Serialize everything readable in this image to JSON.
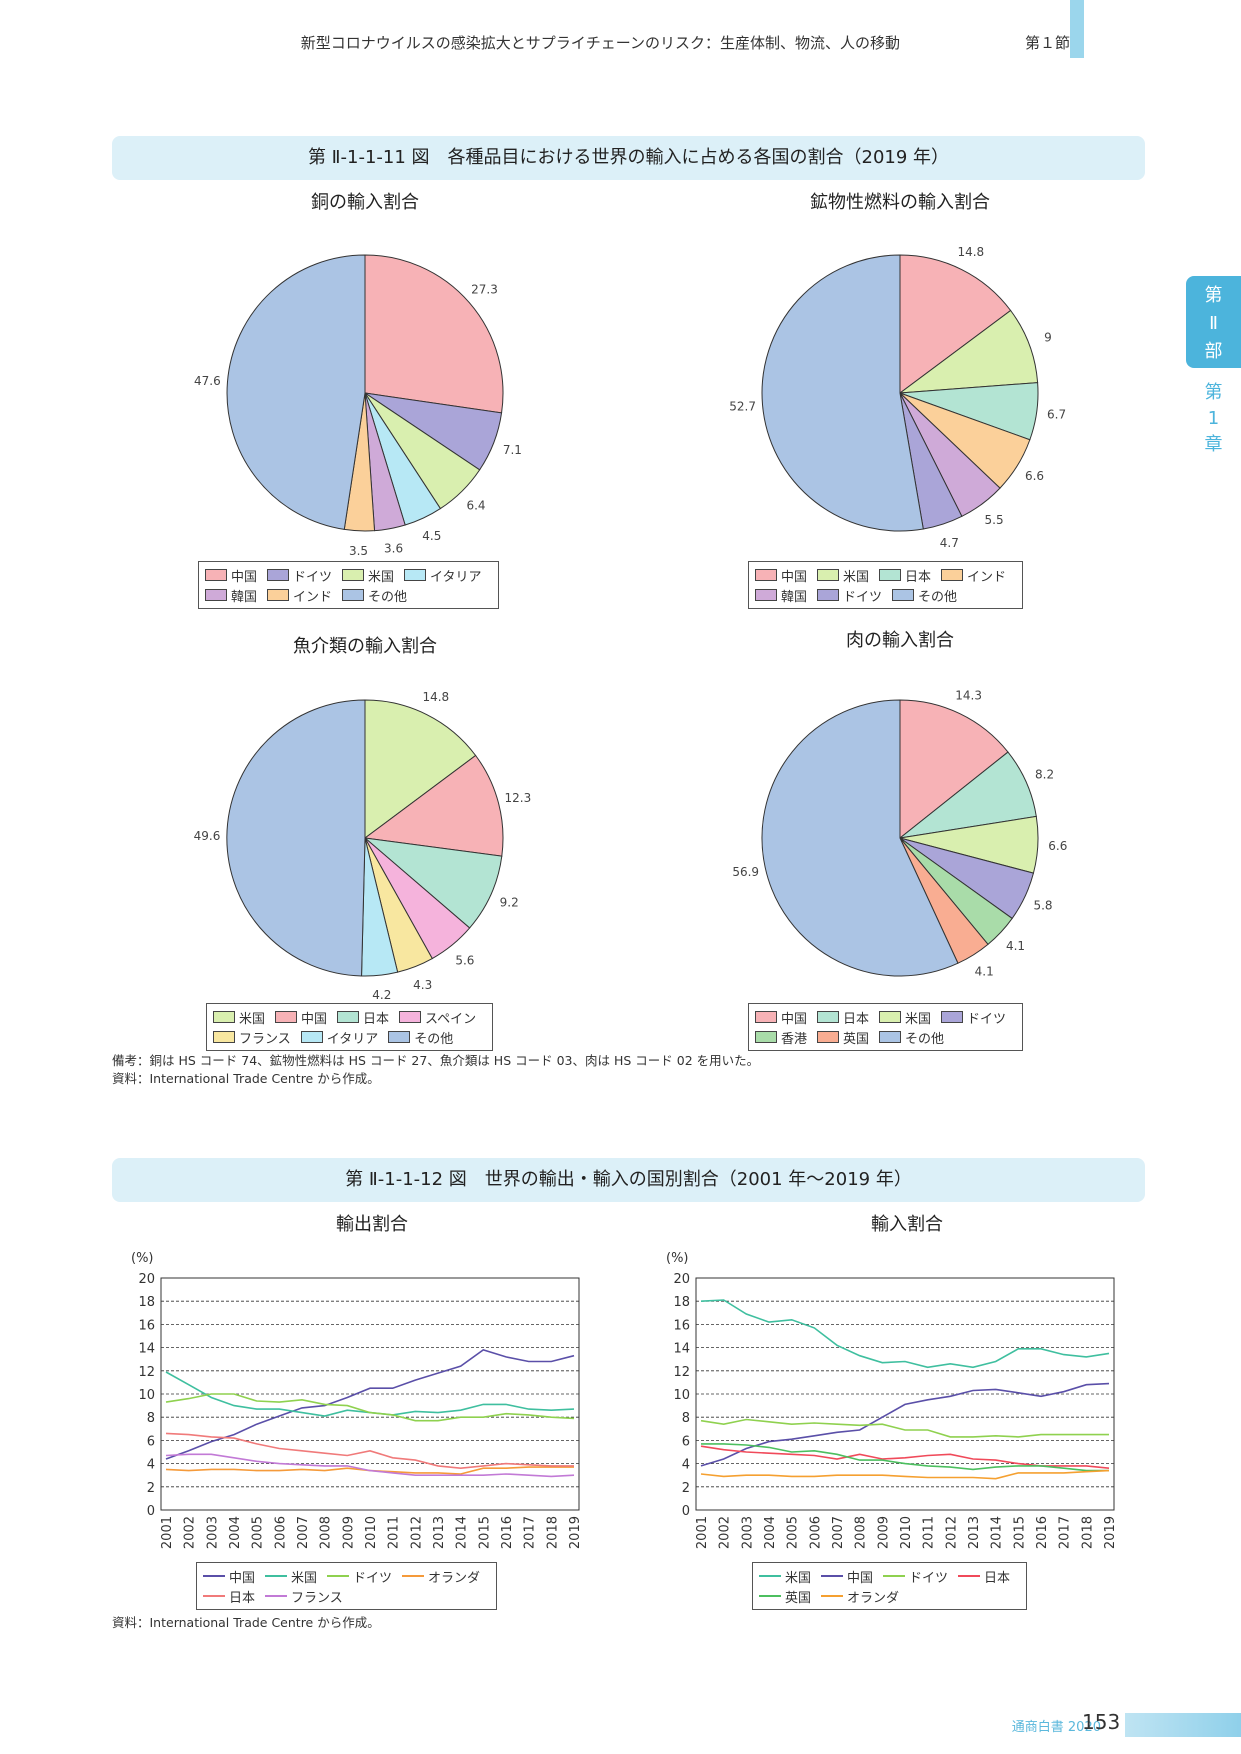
{
  "header": {
    "title": "新型コロナウイルスの感染拡大とサプライチェーンのリスク：生産体制、物流、人の移動",
    "section": "第１節"
  },
  "side": {
    "part": [
      "第",
      "Ⅱ",
      "部"
    ],
    "chapter": [
      "第",
      "1",
      "章"
    ]
  },
  "fig11": {
    "title": "第 Ⅱ-1-1-11 図　各種品目における世界の輸入に占める各国の割合（2019 年）",
    "note1": "備考：銅は HS コード 74、鉱物性燃料は HS コード 27、魚介類は HS コード 03、肉は HS コード 02 を用いた。",
    "note2": "資料：International Trade Centre から作成。"
  },
  "fig12": {
    "title": "第 Ⅱ-1-1-12 図　世界の輸出・輸入の国別割合（2001 年〜2019 年）",
    "note": "資料：International Trade Centre から作成。"
  },
  "footer": {
    "publication": "通商白書 2020",
    "page": "153"
  },
  "chart_data": [
    {
      "type": "pie",
      "title": "銅の輸入割合",
      "slices": [
        {
          "name": "中国",
          "value": 27.3,
          "color": "#f7b2b6"
        },
        {
          "name": "ドイツ",
          "value": 7.1,
          "color": "#aaa5d8"
        },
        {
          "name": "米国",
          "value": 6.4,
          "color": "#d9efaf"
        },
        {
          "name": "イタリア",
          "value": 4.5,
          "color": "#b7e8f5"
        },
        {
          "name": "韓国",
          "value": 3.6,
          "color": "#cfaad8"
        },
        {
          "name": "インド",
          "value": 3.5,
          "color": "#fbd09a"
        },
        {
          "name": "その他",
          "value": 47.6,
          "color": "#abc4e4"
        }
      ],
      "legend_rows": [
        [
          "中国",
          "ドイツ",
          "米国",
          "イタリア"
        ],
        [
          "韓国",
          "インド",
          "その他"
        ]
      ]
    },
    {
      "type": "pie",
      "title": "鉱物性燃料の輸入割合",
      "slices": [
        {
          "name": "中国",
          "value": 14.8,
          "color": "#f7b2b6"
        },
        {
          "name": "米国",
          "value": 9,
          "color": "#d9efaf"
        },
        {
          "name": "日本",
          "value": 6.7,
          "color": "#b3e4d3"
        },
        {
          "name": "インド",
          "value": 6.6,
          "color": "#fbd09a"
        },
        {
          "name": "韓国",
          "value": 5.5,
          "color": "#cfaad8"
        },
        {
          "name": "ドイツ",
          "value": 4.7,
          "color": "#aaa5d8"
        },
        {
          "name": "その他",
          "value": 52.7,
          "color": "#abc4e4"
        }
      ],
      "legend_rows": [
        [
          "中国",
          "米国",
          "日本",
          "インド"
        ],
        [
          "韓国",
          "ドイツ",
          "その他"
        ]
      ]
    },
    {
      "type": "pie",
      "title": "魚介類の輸入割合",
      "slices": [
        {
          "name": "米国",
          "value": 14.8,
          "color": "#d9efaf"
        },
        {
          "name": "中国",
          "value": 12.3,
          "color": "#f7b2b6"
        },
        {
          "name": "日本",
          "value": 9.2,
          "color": "#b3e4d3"
        },
        {
          "name": "スペイン",
          "value": 5.6,
          "color": "#f5b3dc"
        },
        {
          "name": "フランス",
          "value": 4.3,
          "color": "#f8e7a0"
        },
        {
          "name": "イタリア",
          "value": 4.2,
          "color": "#b7e8f5"
        },
        {
          "name": "その他",
          "value": 49.6,
          "color": "#abc4e4"
        }
      ],
      "legend_rows": [
        [
          "米国",
          "中国",
          "日本",
          "スペイン"
        ],
        [
          "フランス",
          "イタリア",
          "その他"
        ]
      ]
    },
    {
      "type": "pie",
      "title": "肉の輸入割合",
      "slices": [
        {
          "name": "中国",
          "value": 14.3,
          "color": "#f7b2b6"
        },
        {
          "name": "日本",
          "value": 8.2,
          "color": "#b3e4d3"
        },
        {
          "name": "米国",
          "value": 6.6,
          "color": "#d9efaf"
        },
        {
          "name": "ドイツ",
          "value": 5.8,
          "color": "#aaa5d8"
        },
        {
          "name": "香港",
          "value": 4.1,
          "color": "#a9dca9"
        },
        {
          "name": "英国",
          "value": 4.1,
          "color": "#f9ad92"
        },
        {
          "name": "その他",
          "value": 56.9,
          "color": "#abc4e4"
        }
      ],
      "legend_rows": [
        [
          "中国",
          "日本",
          "米国",
          "ドイツ"
        ],
        [
          "香港",
          "英国",
          "その他"
        ]
      ]
    },
    {
      "type": "line",
      "title": "輸出割合",
      "ylabel": "(%)",
      "ylim": [
        0,
        20
      ],
      "yticks": [
        0,
        2,
        4,
        6,
        8,
        10,
        12,
        14,
        16,
        18,
        20
      ],
      "x": [
        "2001",
        "2002",
        "2003",
        "2004",
        "2005",
        "2006",
        "2007",
        "2008",
        "2009",
        "2010",
        "2011",
        "2012",
        "2013",
        "2014",
        "2015",
        "2016",
        "2017",
        "2018",
        "2019"
      ],
      "series": [
        {
          "name": "中国",
          "color": "#5a4fa8",
          "values": [
            4.4,
            5.1,
            5.9,
            6.5,
            7.4,
            8.1,
            8.8,
            9.0,
            9.7,
            10.5,
            10.5,
            11.2,
            11.8,
            12.4,
            13.8,
            13.2,
            12.8,
            12.8,
            13.3
          ]
        },
        {
          "name": "米国",
          "color": "#3fbf9f",
          "values": [
            11.9,
            10.8,
            9.7,
            9.0,
            8.7,
            8.7,
            8.4,
            8.1,
            8.6,
            8.4,
            8.2,
            8.5,
            8.4,
            8.6,
            9.1,
            9.1,
            8.7,
            8.6,
            8.7
          ]
        },
        {
          "name": "ドイツ",
          "color": "#8fd14f",
          "values": [
            9.3,
            9.6,
            10.0,
            10.0,
            9.4,
            9.3,
            9.5,
            9.1,
            9.0,
            8.4,
            8.2,
            7.7,
            7.7,
            8.0,
            8.0,
            8.3,
            8.2,
            8.0,
            7.9
          ]
        },
        {
          "name": "オランダ",
          "color": "#f59a3a",
          "values": [
            3.5,
            3.4,
            3.5,
            3.5,
            3.4,
            3.4,
            3.5,
            3.4,
            3.6,
            3.4,
            3.3,
            3.2,
            3.2,
            3.1,
            3.6,
            3.6,
            3.7,
            3.7,
            3.7
          ]
        },
        {
          "name": "日本",
          "color": "#f07a7a",
          "values": [
            6.6,
            6.5,
            6.3,
            6.2,
            5.7,
            5.3,
            5.1,
            4.9,
            4.7,
            5.1,
            4.5,
            4.3,
            3.8,
            3.6,
            3.8,
            4.0,
            3.9,
            3.8,
            3.8
          ]
        },
        {
          "name": "フランス",
          "color": "#c27ad6",
          "values": [
            4.7,
            4.8,
            4.8,
            4.5,
            4.2,
            4.0,
            3.9,
            3.8,
            3.8,
            3.4,
            3.2,
            3.0,
            3.0,
            3.0,
            3.0,
            3.1,
            3.0,
            2.9,
            3.0
          ]
        }
      ],
      "legend_rows": [
        [
          "中国",
          "米国",
          "ドイツ",
          "オランダ"
        ],
        [
          "日本",
          "フランス"
        ]
      ]
    },
    {
      "type": "line",
      "title": "輸入割合",
      "ylabel": "(%)",
      "ylim": [
        0,
        20
      ],
      "yticks": [
        0,
        2,
        4,
        6,
        8,
        10,
        12,
        14,
        16,
        18,
        20
      ],
      "x": [
        "2001",
        "2002",
        "2003",
        "2004",
        "2005",
        "2006",
        "2007",
        "2008",
        "2009",
        "2010",
        "2011",
        "2012",
        "2013",
        "2014",
        "2015",
        "2016",
        "2017",
        "2018",
        "2019"
      ],
      "series": [
        {
          "name": "米国",
          "color": "#3fbf9f",
          "values": [
            18.0,
            18.1,
            16.9,
            16.2,
            16.4,
            15.7,
            14.2,
            13.3,
            12.7,
            12.8,
            12.3,
            12.6,
            12.3,
            12.8,
            13.9,
            13.9,
            13.4,
            13.2,
            13.5
          ]
        },
        {
          "name": "中国",
          "color": "#5a4fa8",
          "values": [
            3.8,
            4.4,
            5.3,
            5.9,
            6.1,
            6.4,
            6.7,
            6.9,
            8.0,
            9.1,
            9.5,
            9.8,
            10.3,
            10.4,
            10.1,
            9.8,
            10.2,
            10.8,
            10.9
          ]
        },
        {
          "name": "ドイツ",
          "color": "#8fd14f",
          "values": [
            7.7,
            7.4,
            7.8,
            7.6,
            7.4,
            7.5,
            7.4,
            7.3,
            7.4,
            6.9,
            6.9,
            6.3,
            6.3,
            6.4,
            6.3,
            6.5,
            6.5,
            6.5,
            6.5
          ]
        },
        {
          "name": "日本",
          "color": "#f04a5a",
          "values": [
            5.5,
            5.2,
            5.0,
            4.9,
            4.8,
            4.7,
            4.4,
            4.8,
            4.4,
            4.5,
            4.7,
            4.8,
            4.4,
            4.3,
            4.0,
            3.8,
            3.8,
            3.8,
            3.6
          ]
        },
        {
          "name": "英国",
          "color": "#4cbf5f",
          "values": [
            5.7,
            5.7,
            5.6,
            5.4,
            5.0,
            5.1,
            4.8,
            4.3,
            4.3,
            4.0,
            3.8,
            3.7,
            3.5,
            3.7,
            3.8,
            3.8,
            3.6,
            3.4,
            3.4
          ]
        },
        {
          "name": "オランダ",
          "color": "#f5a030",
          "values": [
            3.1,
            2.9,
            3.0,
            3.0,
            2.9,
            2.9,
            3.0,
            3.0,
            3.0,
            2.9,
            2.8,
            2.8,
            2.8,
            2.7,
            3.2,
            3.2,
            3.2,
            3.3,
            3.4
          ]
        }
      ],
      "legend_rows": [
        [
          "米国",
          "中国",
          "ドイツ",
          "日本"
        ],
        [
          "英国",
          "オランダ"
        ]
      ]
    }
  ]
}
